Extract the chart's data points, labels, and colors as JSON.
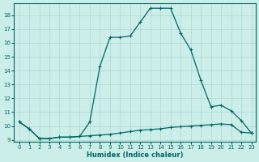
{
  "xlabel": "Humidex (Indice chaleur)",
  "background_color": "#cceee8",
  "grid_color": "#aad8d0",
  "line_color": "#006666",
  "xlim_min": -0.5,
  "xlim_max": 23.4,
  "ylim_min": 8.85,
  "ylim_max": 18.85,
  "yticks": [
    9,
    10,
    11,
    12,
    13,
    14,
    15,
    16,
    17,
    18
  ],
  "xticks": [
    0,
    1,
    2,
    3,
    4,
    5,
    6,
    7,
    8,
    9,
    10,
    11,
    12,
    13,
    14,
    15,
    16,
    17,
    18,
    19,
    20,
    21,
    22,
    23
  ],
  "line1_x": [
    0,
    1,
    2,
    3,
    4,
    5,
    6,
    7,
    8,
    9,
    10,
    11,
    12,
    13,
    14,
    15,
    16,
    17,
    18,
    19,
    20,
    21,
    22,
    23
  ],
  "line1_y": [
    10.3,
    9.8,
    9.1,
    9.1,
    9.2,
    9.2,
    9.25,
    9.3,
    9.35,
    9.4,
    9.5,
    9.6,
    9.7,
    9.75,
    9.8,
    9.9,
    9.95,
    10.0,
    10.05,
    10.1,
    10.15,
    10.1,
    9.55,
    9.5
  ],
  "line2_x": [
    0,
    1,
    2,
    3,
    4,
    5,
    6,
    7,
    8,
    9,
    10,
    11,
    12,
    13,
    14,
    15,
    16,
    17,
    18,
    19,
    20,
    21,
    22,
    23
  ],
  "line2_y": [
    10.3,
    9.8,
    9.1,
    9.1,
    9.2,
    9.2,
    9.25,
    10.3,
    14.3,
    16.4,
    16.4,
    16.5,
    17.5,
    18.5,
    18.5,
    18.5,
    16.7,
    15.5,
    13.3,
    11.4,
    11.5,
    11.1,
    10.4,
    9.5
  ]
}
